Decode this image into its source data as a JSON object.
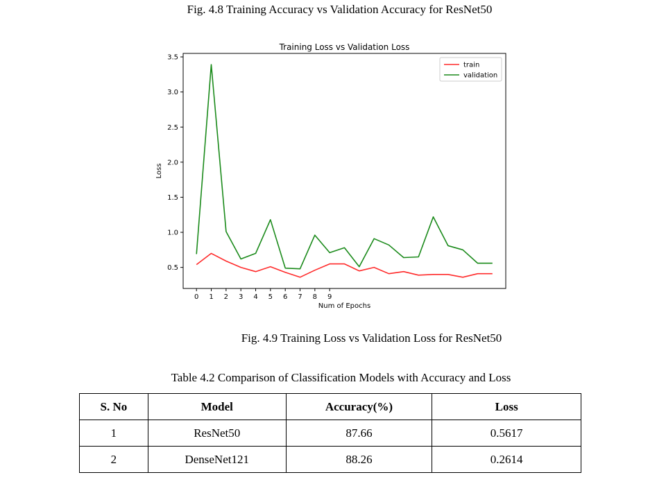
{
  "captions": {
    "top": "Fig. 4.8 Training Accuracy vs Validation Accuracy for ResNet50",
    "figure": "Fig. 4.9 Training Loss vs Validation Loss for ResNet50",
    "table": "Table 4.2 Comparison of Classification Models with Accuracy and Loss"
  },
  "chart_data": {
    "type": "line",
    "title": "Training Loss vs Validation Loss",
    "xlabel": "Num of Epochs",
    "ylabel": "Loss",
    "x": [
      0,
      1,
      2,
      3,
      4,
      5,
      6,
      7,
      8,
      9,
      10,
      11,
      12,
      13,
      14,
      15,
      16,
      17,
      18,
      19,
      20
    ],
    "x_ticks": [
      0,
      1,
      2,
      3,
      4,
      5,
      6,
      7,
      8,
      9
    ],
    "y_ticks": [
      0.5,
      1.0,
      1.5,
      2.0,
      2.5,
      3.0,
      3.5
    ],
    "y_tick_labels": [
      "0.5",
      "1.0",
      "1.5",
      "2.0",
      "2.5",
      "3.0",
      "3.5"
    ],
    "xlim": [
      -0.9,
      20.9
    ],
    "ylim": [
      0.2,
      3.55
    ],
    "grid": false,
    "legend_position": "top-right",
    "series": [
      {
        "name": "train",
        "color": "#ff2a2a",
        "values": [
          0.54,
          0.7,
          0.59,
          0.5,
          0.44,
          0.51,
          0.43,
          0.36,
          0.46,
          0.55,
          0.55,
          0.45,
          0.5,
          0.41,
          0.44,
          0.39,
          0.4,
          0.4,
          0.36,
          0.41,
          0.41
        ]
      },
      {
        "name": "validation",
        "color": "#1a8a1a",
        "values": [
          0.69,
          3.39,
          1.01,
          0.62,
          0.7,
          1.18,
          0.49,
          0.48,
          0.96,
          0.71,
          0.78,
          0.51,
          0.91,
          0.82,
          0.64,
          0.65,
          1.22,
          0.81,
          0.75,
          0.56,
          0.56
        ]
      }
    ]
  },
  "table": {
    "headers": [
      "S. No",
      "Model",
      "Accuracy(%)",
      "Loss"
    ],
    "rows": [
      [
        "1",
        "ResNet50",
        "87.66",
        "0.5617"
      ],
      [
        "2",
        "DenseNet121",
        "88.26",
        "0.2614"
      ]
    ]
  }
}
